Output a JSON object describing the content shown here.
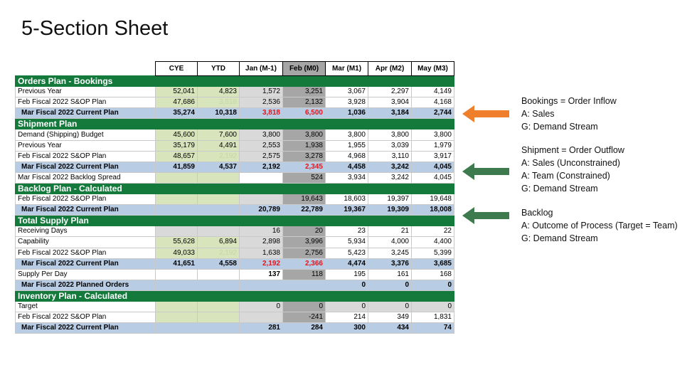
{
  "title": "5-Section Sheet",
  "columns": [
    "CYE",
    "YTD",
    "Jan (M-1)",
    "Feb (M0)",
    "Mar (M1)",
    "Apr (M2)",
    "May (M3)"
  ],
  "sections": {
    "orders": {
      "title": "Orders Plan - Bookings",
      "rows": [
        {
          "label": "Previous Year",
          "v": [
            "52,041",
            "4,823",
            "1,572",
            "3,251",
            "3,067",
            "2,297",
            "4,149"
          ]
        },
        {
          "label": "Feb Fiscal 2022 S&OP Plan",
          "v": [
            "47,686",
            "3,518",
            "2,536",
            "2,132",
            "3,928",
            "3,904",
            "4,168"
          ]
        },
        {
          "label": "Mar Fiscal 2022 Current Plan",
          "v": [
            "35,274",
            "10,318",
            "3,818",
            "6,500",
            "1,036",
            "3,184",
            "2,744"
          ]
        }
      ]
    },
    "shipment": {
      "title": "Shipment Plan",
      "rows": [
        {
          "label": "Demand (Shipping) Budget",
          "v": [
            "45,600",
            "7,600",
            "3,800",
            "3,800",
            "3,800",
            "3,800",
            "3,800"
          ]
        },
        {
          "label": "Previous Year",
          "v": [
            "35,179",
            "4,491",
            "2,553",
            "1,938",
            "1,955",
            "3,039",
            "1,979"
          ]
        },
        {
          "label": "Feb Fiscal 2022 S&OP Plan",
          "v": [
            "48,657",
            "2,192",
            "2,575",
            "3,278",
            "4,968",
            "3,110",
            "3,917"
          ]
        },
        {
          "label": "Mar Fiscal 2022 Current Plan",
          "v": [
            "41,859",
            "4,537",
            "2,192",
            "2,345",
            "4,458",
            "3,242",
            "4,045"
          ]
        },
        {
          "label": "Mar Fiscal 2022 Backlog Spread",
          "v": [
            "",
            "",
            "",
            "524",
            "3,934",
            "3,242",
            "4,045"
          ]
        }
      ]
    },
    "backlog": {
      "title": "Backlog Plan - Calculated",
      "rows": [
        {
          "label": "Feb Fiscal 2022 S&OP Plan",
          "v": [
            "",
            "",
            "",
            "19,643",
            "18,603",
            "19,397",
            "19,648"
          ]
        },
        {
          "label": "Mar Fiscal 2022 Current Plan",
          "v": [
            "",
            "",
            "20,789",
            "22,789",
            "19,367",
            "19,309",
            "18,008"
          ]
        }
      ]
    },
    "supply": {
      "title": "Total Supply Plan",
      "rows": [
        {
          "label": "Receiving Days",
          "v": [
            "",
            "",
            "16",
            "20",
            "23",
            "21",
            "22"
          ]
        },
        {
          "label": "Capability",
          "v": [
            "55,628",
            "6,894",
            "2,898",
            "3,996",
            "5,934",
            "4,000",
            "4,400"
          ]
        },
        {
          "label": "Feb Fiscal 2022 S&OP Plan",
          "v": [
            "49,033",
            "2,192",
            "1,638",
            "2,756",
            "5,423",
            "3,245",
            "5,399"
          ]
        },
        {
          "label": "Mar Fiscal 2022 Current Plan",
          "v": [
            "41,651",
            "4,558",
            "2,192",
            "2,366",
            "4,474",
            "3,376",
            "3,685"
          ]
        },
        {
          "label": "Supply Per Day",
          "v": [
            "",
            "",
            "137",
            "118",
            "195",
            "161",
            "168"
          ]
        },
        {
          "label": "Mar Fiscal 2022 Planned Orders",
          "v": [
            "",
            "",
            "",
            "",
            "0",
            "0",
            "0"
          ]
        }
      ]
    },
    "inventory": {
      "title": "Inventory Plan - Calculated",
      "rows": [
        {
          "label": "Target",
          "v": [
            "",
            "",
            "0",
            "0",
            "0",
            "0",
            "0"
          ]
        },
        {
          "label": "Feb Fiscal 2022 S&OP Plan",
          "v": [
            "",
            "",
            "",
            "-241",
            "214",
            "349",
            "1,831"
          ]
        },
        {
          "label": "Mar Fiscal 2022 Current Plan",
          "v": [
            "",
            "",
            "281",
            "284",
            "300",
            "434",
            "74"
          ]
        }
      ]
    }
  },
  "annotations": [
    {
      "heading": "Bookings = Order Inflow",
      "lines": [
        "A:  Sales",
        "G:  Demand Stream"
      ],
      "arrow_color": "#f07f2c"
    },
    {
      "heading": "Shipment = Order Outflow",
      "lines": [
        "A:  Sales (Unconstrained)",
        "A:  Team (Constrained)",
        "G:  Demand Stream"
      ],
      "arrow_color": "#3d7a4e"
    },
    {
      "heading": "Backlog",
      "lines": [
        "A:  Outcome of Process (Target = Team)",
        "G:  Demand Stream"
      ],
      "arrow_color": "#3d7a4e"
    }
  ]
}
